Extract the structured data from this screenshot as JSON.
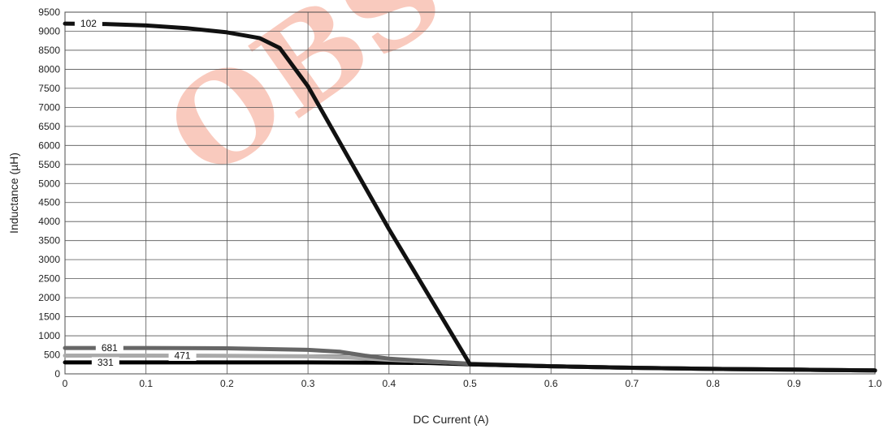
{
  "chart_data": {
    "type": "line",
    "title": "",
    "xlabel": "DC Current (A)",
    "ylabel": "Inductance (µH)",
    "xlim": [
      0,
      1.0
    ],
    "ylim": [
      0,
      9500
    ],
    "x_ticks": [
      "0",
      "0.1",
      "0.2",
      "0.3",
      "0.4",
      "0.5",
      "0.6",
      "0.7",
      "0.8",
      "0.9",
      "1.0"
    ],
    "y_ticks": [
      "0",
      "500",
      "1000",
      "1500",
      "2000",
      "2500",
      "3000",
      "3500",
      "4000",
      "4500",
      "5000",
      "5500",
      "6000",
      "6500",
      "7000",
      "7500",
      "8000",
      "8500",
      "9000",
      "9500"
    ],
    "grid": true,
    "watermark": "OBSOLETE",
    "series": [
      {
        "name": "102",
        "color": "#111111",
        "x": [
          0,
          0.05,
          0.1,
          0.15,
          0.2,
          0.24,
          0.265,
          0.3,
          0.4,
          0.5,
          0.6,
          0.7,
          0.8,
          0.9,
          1.0
        ],
        "y": [
          9200,
          9190,
          9150,
          9080,
          8970,
          8820,
          8560,
          7550,
          3800,
          250,
          200,
          160,
          130,
          110,
          90
        ]
      },
      {
        "name": "681",
        "color": "#666666",
        "x": [
          0,
          0.1,
          0.2,
          0.3,
          0.34,
          0.37,
          0.4,
          0.5,
          0.6,
          0.7,
          0.8,
          0.9,
          1.0
        ],
        "y": [
          680,
          680,
          670,
          630,
          580,
          480,
          400,
          260,
          200,
          160,
          130,
          110,
          90
        ]
      },
      {
        "name": "471",
        "color": "#aaaaaa",
        "x": [
          0,
          0.1,
          0.2,
          0.3,
          0.35,
          0.4,
          0.5,
          0.6,
          0.7,
          0.8,
          0.9,
          1.0
        ],
        "y": [
          480,
          480,
          475,
          460,
          430,
          370,
          270,
          200,
          160,
          130,
          110,
          90
        ]
      },
      {
        "name": "331",
        "color": "#000000",
        "x": [
          0,
          0.1,
          0.2,
          0.3,
          0.4,
          0.45,
          0.5,
          0.6,
          0.7,
          0.8,
          0.9,
          1.0
        ],
        "y": [
          300,
          300,
          300,
          300,
          295,
          285,
          250,
          200,
          160,
          130,
          110,
          90
        ]
      }
    ],
    "series_labels": [
      {
        "series": "102",
        "x": 0.029,
        "y": 9200
      },
      {
        "series": "681",
        "x": 0.055,
        "y": 680
      },
      {
        "series": "471",
        "x": 0.145,
        "y": 480
      },
      {
        "series": "331",
        "x": 0.05,
        "y": 300
      }
    ]
  }
}
